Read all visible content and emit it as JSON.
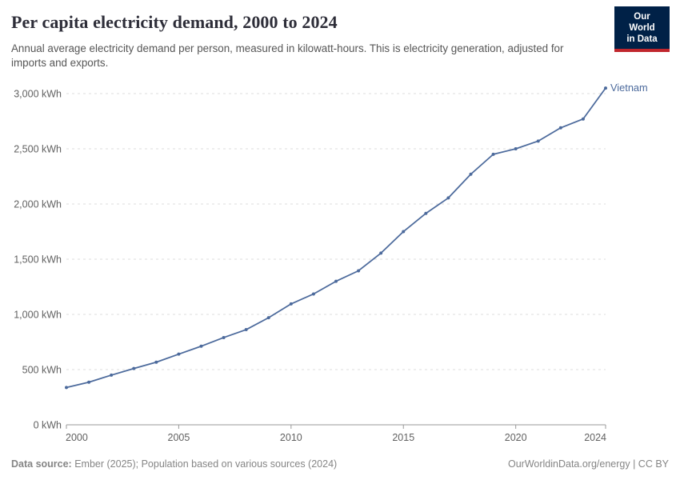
{
  "header": {
    "title": "Per capita electricity demand, 2000 to 2024",
    "subtitle": "Annual average electricity demand per person, measured in kilowatt-hours. This is electricity generation, adjusted for imports and exports.",
    "logo": {
      "line1": "Our World",
      "line2": "in Data",
      "bg_color": "#002147",
      "accent_color": "#C0262D"
    }
  },
  "footer": {
    "datasource_label": "Data source:",
    "datasource_text": "Ember (2025); Population based on various sources (2024)",
    "link_text": "OurWorldinData.org/energy | CC BY"
  },
  "colors": {
    "series_line": "#4C6A9C",
    "grid_line": "#dcdcdc",
    "axis_line": "#999999",
    "tick_label": "#616161",
    "title_text": "#2d2d38",
    "subtitle_text": "#565656",
    "footer_text": "#858585"
  },
  "chart_data": {
    "type": "line",
    "title": "Per capita electricity demand, 2000 to 2024",
    "xlabel": "",
    "ylabel": "kWh",
    "unit_suffix": " kWh",
    "grid": true,
    "legend": "line-end-label",
    "entity_label": "Vietnam",
    "xlim": [
      2000,
      2024
    ],
    "ylim": [
      0,
      3000
    ],
    "xticks": [
      2000,
      2005,
      2010,
      2015,
      2020,
      2024
    ],
    "yticks": [
      0,
      500,
      1000,
      1500,
      2000,
      2500,
      3000
    ],
    "x": [
      2000,
      2001,
      2002,
      2003,
      2004,
      2005,
      2006,
      2007,
      2008,
      2009,
      2010,
      2011,
      2012,
      2013,
      2014,
      2015,
      2016,
      2017,
      2018,
      2019,
      2020,
      2021,
      2022,
      2023,
      2024
    ],
    "series": [
      {
        "name": "Vietnam",
        "color": "#4C6A9C",
        "values": [
          338,
          386,
          450,
          510,
          567,
          640,
          712,
          790,
          862,
          970,
          1095,
          1185,
          1300,
          1395,
          1555,
          1750,
          1915,
          2055,
          2270,
          2450,
          2500,
          2570,
          2690,
          2770,
          3050
        ]
      }
    ]
  }
}
